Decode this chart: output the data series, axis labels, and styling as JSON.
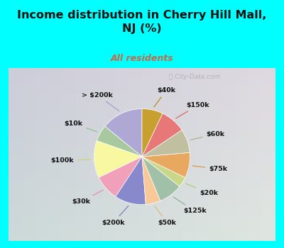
{
  "title": "Income distribution in Cherry Hill Mall,\nNJ (%)",
  "subtitle": "All residents",
  "title_color": "#111111",
  "subtitle_color": "#cc6644",
  "bg_color": "#00FFFF",
  "chart_bg_left": "#b8ddc8",
  "chart_bg_right": "#e8f5ee",
  "watermark": "City-Data.com",
  "labels": [
    "> $200k",
    "$10k",
    "$100k",
    "$30k",
    "$200k",
    "$50k",
    "$125k",
    "$20k",
    "$75k",
    "$60k",
    "$150k",
    "$40k"
  ],
  "values": [
    14.0,
    5.5,
    12.5,
    8.5,
    10.5,
    5.0,
    8.0,
    3.5,
    8.5,
    8.0,
    8.5,
    7.0
  ],
  "colors": [
    "#b0a8d4",
    "#a8c8a0",
    "#f8f8a0",
    "#f0a0b8",
    "#8888cc",
    "#f8c898",
    "#a0c0a8",
    "#c8d888",
    "#e8a860",
    "#c0c0a0",
    "#e87878",
    "#c8a030"
  ],
  "startangle": 90,
  "line_colors": [
    "#a0a0cc",
    "#90c090",
    "#d0d080",
    "#e090a8",
    "#8080c0",
    "#e0b880",
    "#90b098",
    "#b8c878",
    "#d89850",
    "#b0b090",
    "#d86868",
    "#b09020"
  ]
}
